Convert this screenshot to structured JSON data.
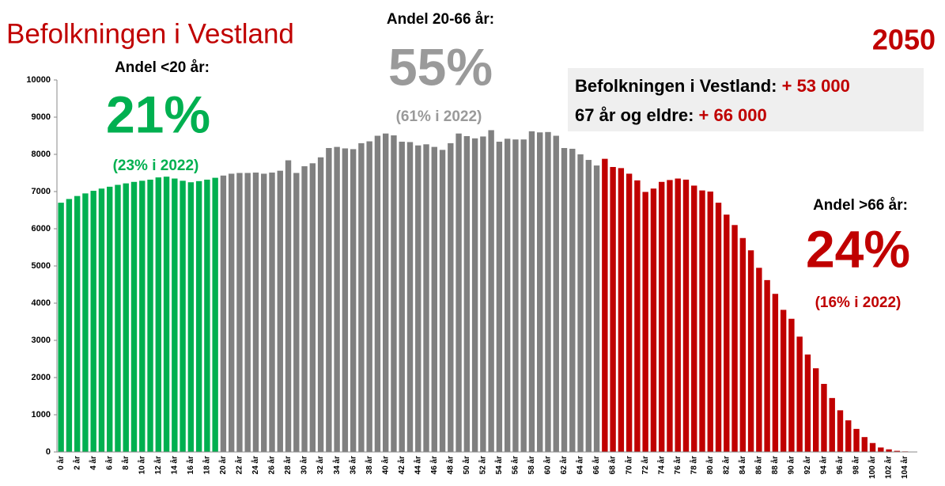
{
  "chart_data": {
    "type": "bar",
    "title": "Befolkningen i Vestland",
    "year": "2050",
    "annotations": {
      "young_heading": "Andel <20 år:",
      "young_share": "21%",
      "young_prev": "(23% i 2022)",
      "mid_heading": "Andel 20-66 år:",
      "mid_share": "55%",
      "mid_prev": "(61% i 2022)",
      "old_heading": "Andel >66 år:",
      "old_share": "24%",
      "old_prev": "(16% i 2022)",
      "box_line1_label": "Befolkningen i Vestland:",
      "box_line1_value": "+ 53 000",
      "box_line2_label": "67 år og eldre:",
      "box_line2_value": "+ 66 000"
    },
    "categories": [
      "0 år",
      null,
      "2 år",
      null,
      "4 år",
      null,
      "6 år",
      null,
      "8 år",
      null,
      "10 år",
      null,
      "12 år",
      null,
      "14 år",
      null,
      "16 år",
      null,
      "18 år",
      null,
      "20 år",
      null,
      "22 år",
      null,
      "24 år",
      null,
      "26 år",
      null,
      "28 år",
      null,
      "30 år",
      null,
      "32 år",
      null,
      "34 år",
      null,
      "36 år",
      null,
      "38 år",
      null,
      "40 år",
      null,
      "42 år",
      null,
      "44 år",
      null,
      "46 år",
      null,
      "48 år",
      null,
      "50 år",
      null,
      "52 år",
      null,
      "54 år",
      null,
      "56 år",
      null,
      "58 år",
      null,
      "60 år",
      null,
      "62 år",
      null,
      "64 år",
      null,
      "66 år",
      null,
      "68 år",
      null,
      "70 år",
      null,
      "72 år",
      null,
      "74 år",
      null,
      "76 år",
      null,
      "78 år",
      null,
      "80 år",
      null,
      "82 år",
      null,
      "84 år",
      null,
      "86 år",
      null,
      "88 år",
      null,
      "90 år",
      null,
      "92 år",
      null,
      "94 år",
      null,
      "96 år",
      null,
      "98 år",
      null,
      "100 år",
      null,
      "102 år",
      null,
      "104 år",
      null
    ],
    "values": [
      6700,
      6800,
      6880,
      6950,
      7020,
      7080,
      7130,
      7180,
      7220,
      7260,
      7290,
      7320,
      7380,
      7400,
      7350,
      7290,
      7250,
      7280,
      7320,
      7370,
      7430,
      7480,
      7500,
      7500,
      7510,
      7480,
      7510,
      7560,
      7840,
      7500,
      7680,
      7760,
      7920,
      8170,
      8200,
      8160,
      8140,
      8300,
      8350,
      8500,
      8560,
      8510,
      8340,
      8330,
      8240,
      8270,
      8200,
      8120,
      8300,
      8560,
      8490,
      8430,
      8480,
      8650,
      8340,
      8420,
      8400,
      8400,
      8620,
      8590,
      8600,
      8500,
      8170,
      8150,
      8000,
      7850,
      7700,
      7880,
      7660,
      7630,
      7480,
      7300,
      6990,
      7080,
      7260,
      7310,
      7350,
      7320,
      7160,
      7030,
      7000,
      6700,
      6380,
      6100,
      5750,
      5420,
      4950,
      4620,
      4250,
      3820,
      3580,
      3100,
      2620,
      2250,
      1830,
      1450,
      1120,
      850,
      620,
      400,
      240,
      120,
      70,
      30,
      15,
      5
    ],
    "colors": [
      "#00b050",
      "#00b050",
      "#00b050",
      "#00b050",
      "#00b050",
      "#00b050",
      "#00b050",
      "#00b050",
      "#00b050",
      "#00b050",
      "#00b050",
      "#00b050",
      "#00b050",
      "#00b050",
      "#00b050",
      "#00b050",
      "#00b050",
      "#00b050",
      "#00b050",
      "#00b050",
      "#808080",
      "#808080",
      "#808080",
      "#808080",
      "#808080",
      "#808080",
      "#808080",
      "#808080",
      "#808080",
      "#808080",
      "#808080",
      "#808080",
      "#808080",
      "#808080",
      "#808080",
      "#808080",
      "#808080",
      "#808080",
      "#808080",
      "#808080",
      "#808080",
      "#808080",
      "#808080",
      "#808080",
      "#808080",
      "#808080",
      "#808080",
      "#808080",
      "#808080",
      "#808080",
      "#808080",
      "#808080",
      "#808080",
      "#808080",
      "#808080",
      "#808080",
      "#808080",
      "#808080",
      "#808080",
      "#808080",
      "#808080",
      "#808080",
      "#808080",
      "#808080",
      "#808080",
      "#808080",
      "#808080",
      "#c00000",
      "#c00000",
      "#c00000",
      "#c00000",
      "#c00000",
      "#c00000",
      "#c00000",
      "#c00000",
      "#c00000",
      "#c00000",
      "#c00000",
      "#c00000",
      "#c00000",
      "#c00000",
      "#c00000",
      "#c00000",
      "#c00000",
      "#c00000",
      "#c00000",
      "#c00000",
      "#c00000",
      "#c00000",
      "#c00000",
      "#c00000",
      "#c00000",
      "#c00000",
      "#c00000",
      "#c00000",
      "#c00000",
      "#c00000",
      "#c00000",
      "#c00000",
      "#c00000",
      "#c00000",
      "#c00000",
      "#c00000",
      "#c00000",
      "#c00000",
      "#c00000"
    ],
    "ylim": [
      0,
      10000
    ],
    "yticks": [
      0,
      1000,
      2000,
      3000,
      4000,
      5000,
      6000,
      7000,
      8000,
      9000,
      10000
    ],
    "grid": false
  }
}
